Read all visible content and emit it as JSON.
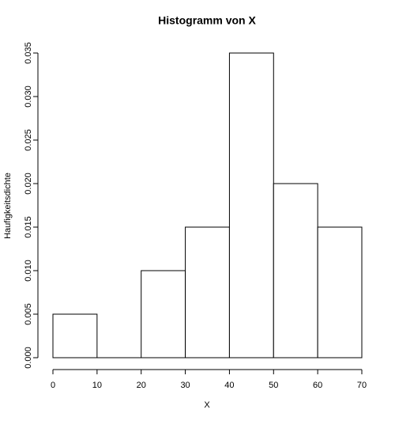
{
  "chart_data": {
    "type": "histogram",
    "title": "Histogramm von X",
    "xlabel": "X",
    "ylabel": "Haufigkeitsdichte",
    "bins": [
      0,
      10,
      20,
      30,
      40,
      50,
      60,
      70
    ],
    "values": [
      0.005,
      0,
      0.01,
      0.015,
      0.035,
      0.02,
      0.015
    ],
    "color": "#ffffff",
    "xlim": [
      0,
      70
    ],
    "xticks": [
      0,
      10,
      20,
      30,
      40,
      50,
      60,
      70
    ],
    "ylim": [
      0,
      0.035
    ],
    "yticks": [
      {
        "value": 0,
        "label": "0.000"
      },
      0.005,
      {
        "value": 0.01,
        "label": "0.010"
      },
      0.015,
      {
        "value": 0.02,
        "label": "0.020"
      },
      0.025,
      {
        "value": 0.03,
        "label": "0.030"
      },
      0.035
    ]
  }
}
